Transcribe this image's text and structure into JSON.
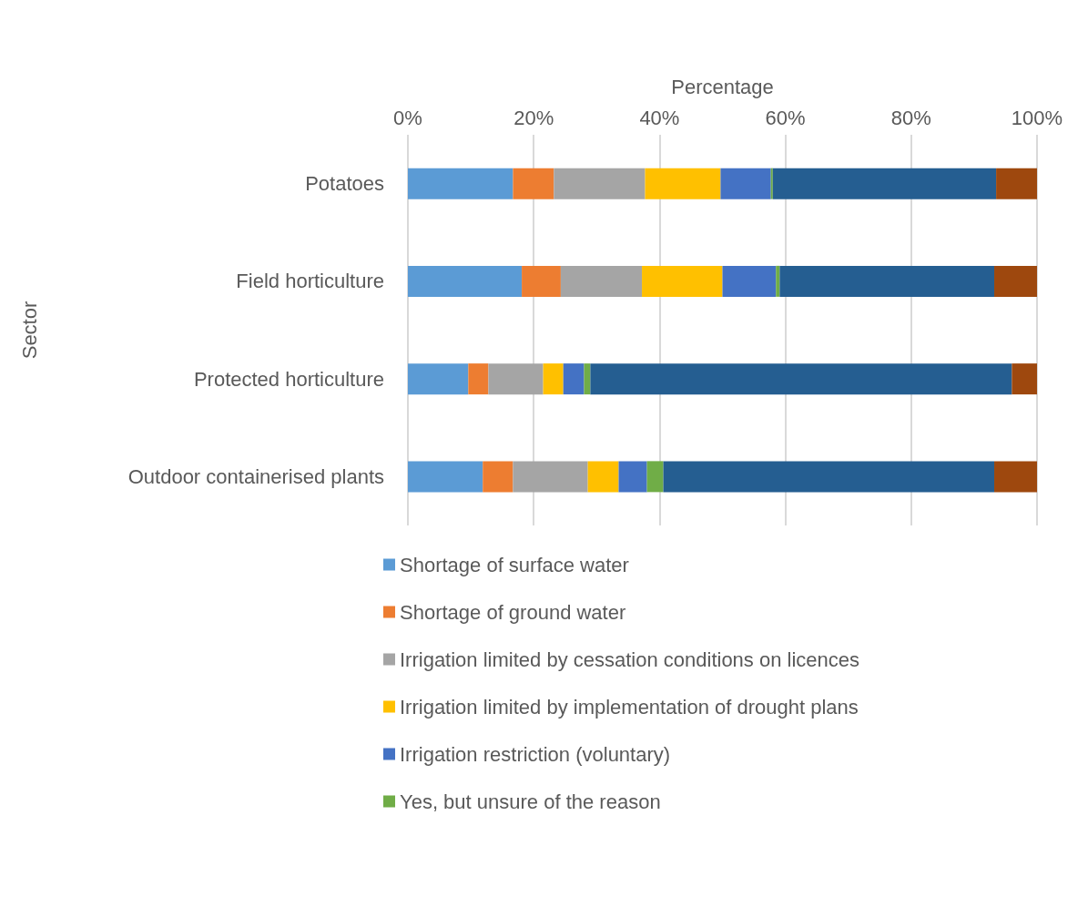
{
  "chart_data": {
    "type": "bar",
    "orientation": "horizontal",
    "stacked": true,
    "xlabel": "Percentage",
    "ylabel": "Sector",
    "categories": [
      "Potatoes",
      "Field horticulture",
      "Protected horticulture",
      "Outdoor containerised plants"
    ],
    "xlim": [
      0,
      100
    ],
    "xticks": [
      {
        "value": 0,
        "label": "0%"
      },
      {
        "value": 20,
        "label": "20%"
      },
      {
        "value": 40,
        "label": "40%"
      },
      {
        "value": 60,
        "label": "60%"
      },
      {
        "value": 80,
        "label": "80%"
      },
      {
        "value": 100,
        "label": "100%"
      }
    ],
    "grid": "x",
    "legend": "bottom",
    "series": [
      {
        "name": "Shortage of surface water",
        "color": "#5b9bd5",
        "values": [
          16.7,
          18.1,
          9.6,
          11.9
        ]
      },
      {
        "name": "Shortage of ground water",
        "color": "#ed7d31",
        "values": [
          6.5,
          6.2,
          3.2,
          4.8
        ]
      },
      {
        "name": "Irrigation limited by cessation conditions on licences",
        "color": "#a5a5a5",
        "values": [
          14.5,
          12.9,
          8.7,
          11.9
        ]
      },
      {
        "name": "Irrigation limited by implementation of drought plans",
        "color": "#ffc000",
        "values": [
          12.0,
          12.8,
          3.2,
          4.9
        ]
      },
      {
        "name": "Irrigation restriction (voluntary)",
        "color": "#4472c4",
        "values": [
          8.0,
          8.5,
          3.3,
          4.5
        ]
      },
      {
        "name": "Yes, but unsure of the reason",
        "color": "#70ad47",
        "values": [
          0.3,
          0.6,
          1.0,
          2.6
        ]
      },
      {
        "color": "#255e91",
        "values": [
          35.5,
          34.1,
          67.0,
          52.6
        ]
      },
      {
        "color": "#9e480e",
        "values": [
          6.5,
          6.8,
          4.0,
          6.8
        ]
      }
    ]
  }
}
